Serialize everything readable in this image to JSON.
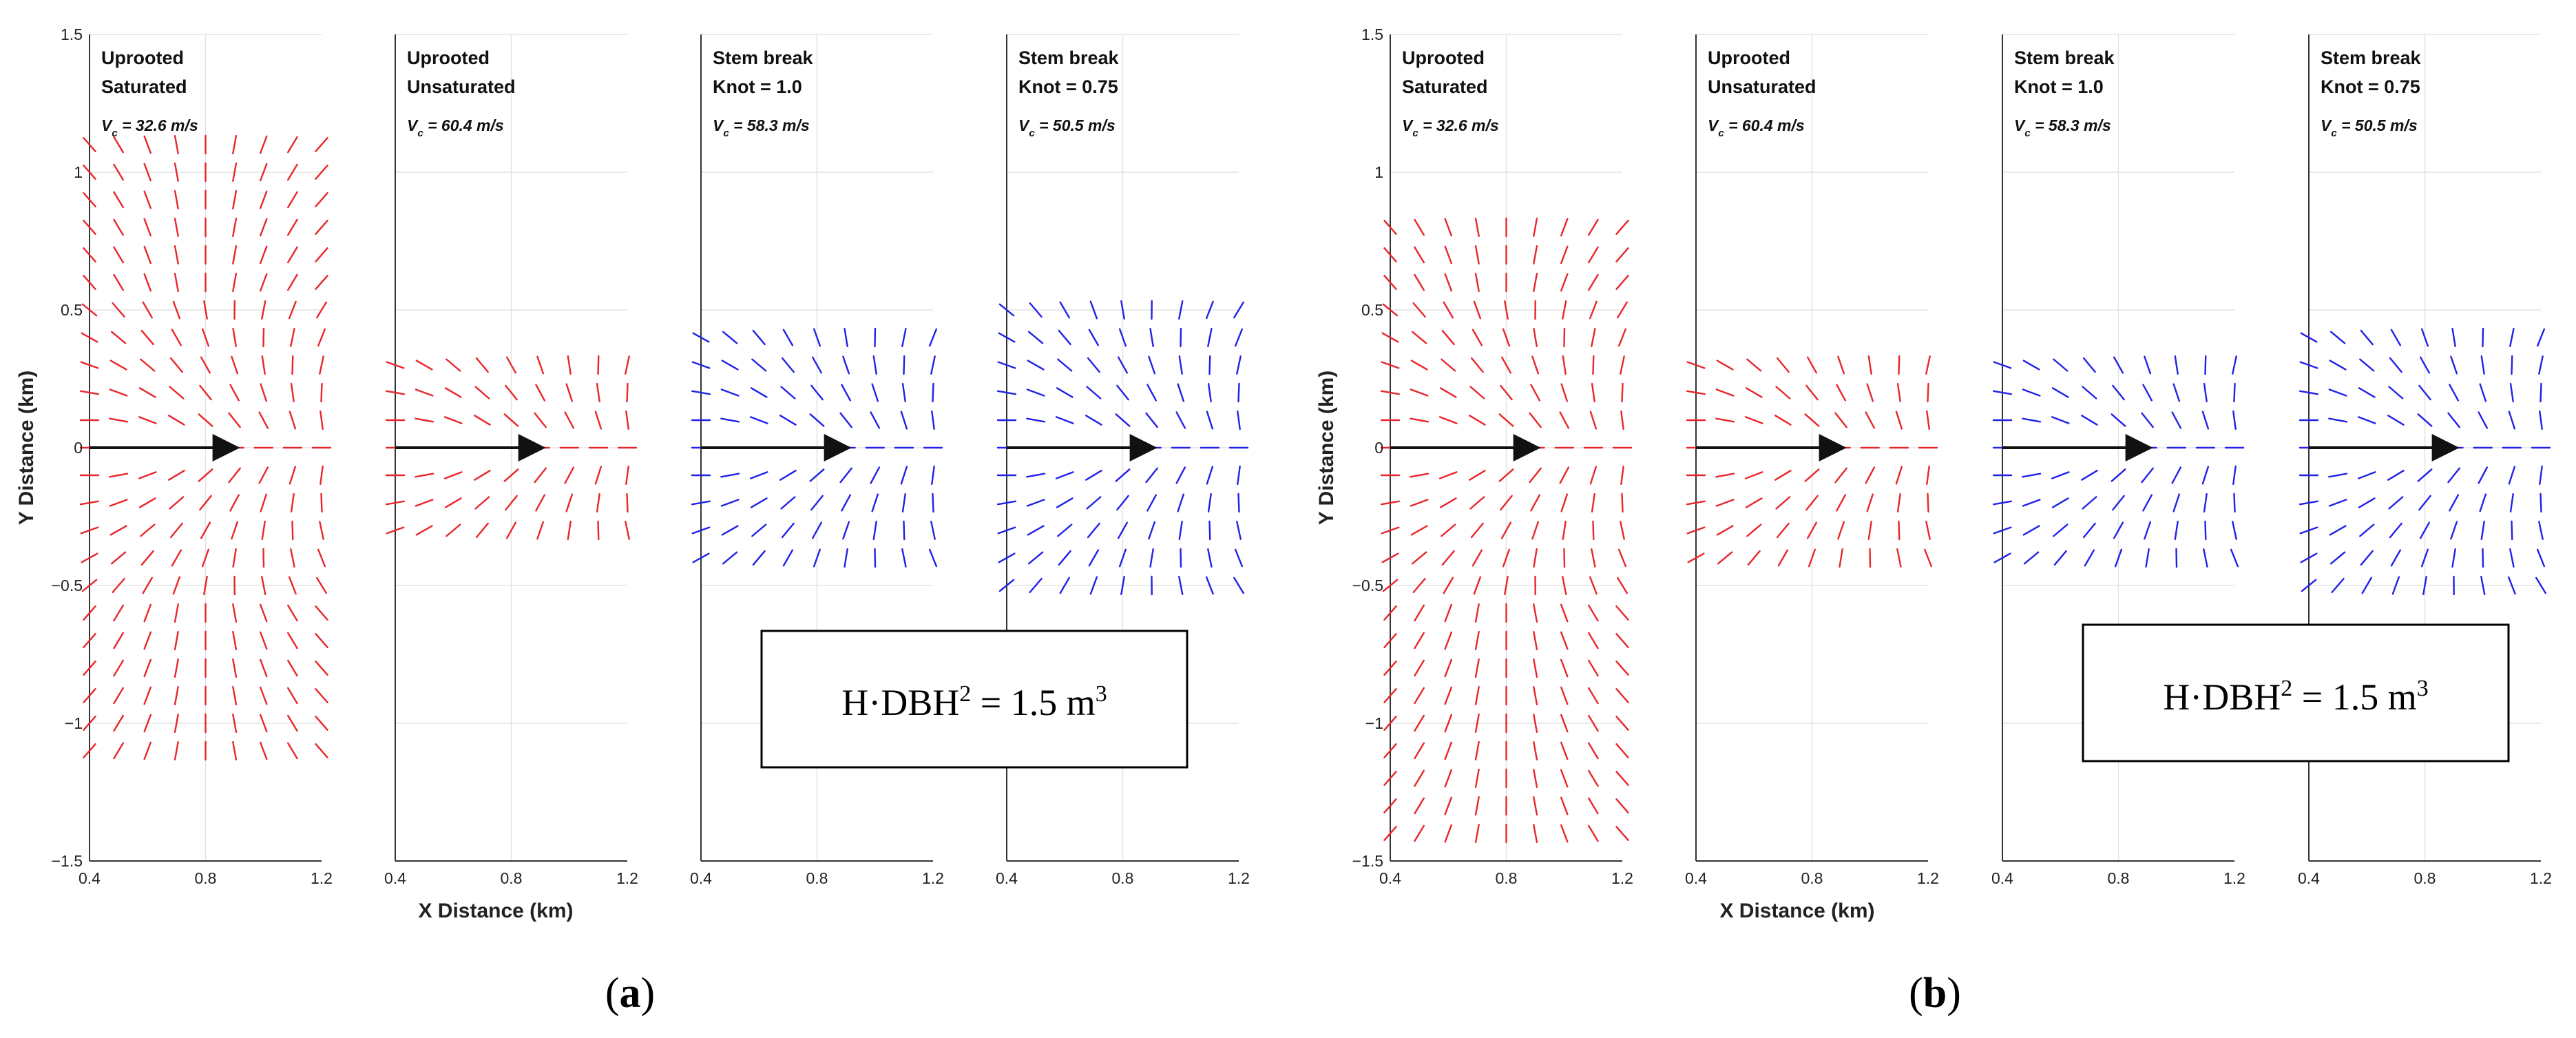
{
  "chart_data": [
    {
      "type": "quiver",
      "label_open": "(",
      "label_letter": "a",
      "label_close": ")",
      "xlabel": "X Distance (km)",
      "ylabel": "Y Distance (km)",
      "xlim": [
        0.4,
        1.2
      ],
      "ylim": [
        -1.5,
        1.5
      ],
      "xticks": [
        "0.4",
        "0.8",
        "1.2"
      ],
      "yticks": [
        "1.5",
        "1",
        "0.5",
        "0",
        "−0.5",
        "−1",
        "−1.5"
      ],
      "annotation": {
        "text": "H·DBH",
        "sup1": "2",
        "mid": " = 1.5 m",
        "sup2": "3"
      },
      "track_arrow": {
        "x0": 0.4,
        "x1": 0.9,
        "y": 0
      },
      "panels": [
        {
          "line1": "Uprooted",
          "line2": "Saturated",
          "vc_sub": "c",
          "vc_value": " = 32.6 m/s",
          "color": "#e8262b",
          "y_extent": 1.1
        },
        {
          "line1": "Uprooted",
          "line2": "Unsaturated",
          "vc_sub": "c",
          "vc_value": " = 60.4 m/s",
          "color": "#e8262b",
          "y_extent": 0.3
        },
        {
          "line1": "Stem break",
          "line2": "Knot = 1.0",
          "vc_sub": "c",
          "vc_value": " = 58.3 m/s",
          "color": "#2121e8",
          "y_extent": 0.4
        },
        {
          "line1": "Stem break",
          "line2": "Knot = 0.75",
          "vc_sub": "c",
          "vc_value": " = 50.5 m/s",
          "color": "#2121e8",
          "y_extent": 0.5
        }
      ]
    },
    {
      "type": "quiver",
      "label_open": "(",
      "label_letter": "b",
      "label_close": ")",
      "xlabel": "X Distance (km)",
      "ylabel": "Y Distance (km)",
      "xlim": [
        0.4,
        1.2
      ],
      "ylim": [
        -1.5,
        1.5
      ],
      "xticks": [
        "0.4",
        "0.8",
        "1.2"
      ],
      "yticks": [
        "1.5",
        "1",
        "0.5",
        "0",
        "−0.5",
        "−1",
        "−1.5"
      ],
      "annotation": {
        "text": "H·DBH",
        "sup1": "2",
        "mid": " = 1.5 m",
        "sup2": "3"
      },
      "track_arrow": {
        "x0": 0.4,
        "x1": 0.9,
        "y": 0
      },
      "panels": [
        {
          "line1": "Uprooted",
          "line2": "Saturated",
          "vc_sub": "c",
          "vc_value": " = 32.6 m/s",
          "color": "#e8262b",
          "y_extent": 0.8,
          "y_extent_low": -1.4
        },
        {
          "line1": "Uprooted",
          "line2": "Unsaturated",
          "vc_sub": "c",
          "vc_value": " = 60.4 m/s",
          "color": "#e8262b",
          "y_extent": 0.3,
          "y_extent_low": -0.4
        },
        {
          "line1": "Stem break",
          "line2": "Knot = 1.0",
          "vc_sub": "c",
          "vc_value": " = 58.3 m/s",
          "color": "#2121e8",
          "y_extent": 0.3,
          "y_extent_low": -0.4
        },
        {
          "line1": "Stem break",
          "line2": "Knot = 0.75",
          "vc_sub": "c",
          "vc_value": " = 50.5 m/s",
          "color": "#2121e8",
          "y_extent": 0.4,
          "y_extent_low": -0.5
        }
      ]
    }
  ]
}
